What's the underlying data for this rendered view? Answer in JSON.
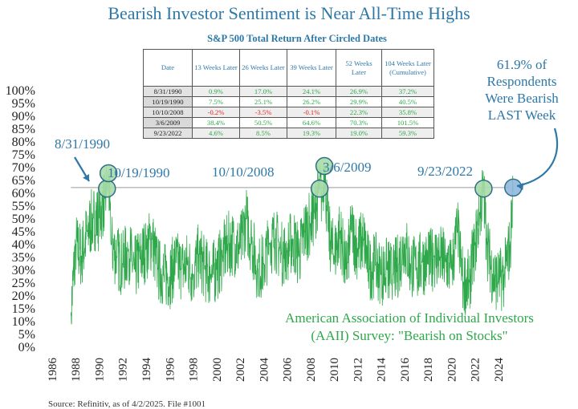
{
  "title": "Bearish Investor Sentiment is Near All-Time Highs",
  "table": {
    "title": "S&P 500 Total Return After Circled Dates",
    "headers": [
      "Date",
      "13 Weeks Later",
      "26 Weeks Later",
      "39 Weeks Later",
      "52 Weeks Later",
      "104 Weeks Later (Cumulative)"
    ],
    "rows": [
      [
        "8/31/1990",
        "0.9%",
        "17.0%",
        "24.1%",
        "26.9%",
        "37.2%"
      ],
      [
        "10/19/1990",
        "7.5%",
        "25.1%",
        "26.2%",
        "29.9%",
        "40.5%"
      ],
      [
        "10/10/2008",
        "-0.2%",
        "-3.5%",
        "-0.1%",
        "22.3%",
        "35.8%"
      ],
      [
        "3/6/2009",
        "38.4%",
        "50.5%",
        "64.6%",
        "70.3%",
        "101.5%"
      ],
      [
        "9/23/2022",
        "4.6%",
        "8.5%",
        "19.3%",
        "19.0%",
        "59.3%"
      ]
    ]
  },
  "annotations": {
    "d1990a": "8/31/1990",
    "d1990b": "10/19/1990",
    "d2008": "10/10/2008",
    "d2009": "3/6/2009",
    "d2022": "9/23/2022",
    "last_week": [
      "61.9% of",
      "Respondents",
      "Were Bearish",
      "LAST Week"
    ],
    "survey": [
      "American Association of Individual Investors",
      "(AAII) Survey: \"Bearish on Stocks\""
    ]
  },
  "source": "Source: Refinitiv, as of 4/2/2025. File #1001",
  "colors": {
    "title": "#2e78a8",
    "series": "#2ea84a",
    "circle_fill": "#a8dca8",
    "last_circle_fill": "#8fb8dd",
    "negative": "#e21f1f"
  },
  "chart_data": {
    "type": "line",
    "series_name": "AAII Survey Bearish on Stocks",
    "x_ticks": [
      "1986",
      "1988",
      "1990",
      "1992",
      "1994",
      "1996",
      "1998",
      "2000",
      "2002",
      "2004",
      "2006",
      "2008",
      "2010",
      "2012",
      "2014",
      "2016",
      "2018",
      "2020",
      "2022",
      "2024"
    ],
    "y_ticks": [
      "0%",
      "5%",
      "10%",
      "15%",
      "20%",
      "25%",
      "30%",
      "35%",
      "40%",
      "45%",
      "50%",
      "55%",
      "60%",
      "65%",
      "70%",
      "75%",
      "80%",
      "85%",
      "90%",
      "95%",
      "100%"
    ],
    "xlim": [
      1985.8,
      2025.3
    ],
    "ylim": [
      0,
      100
    ],
    "reference_line": 61.9,
    "points": [
      [
        1987.6,
        12
      ],
      [
        1988.0,
        40
      ],
      [
        1988.5,
        35
      ],
      [
        1989.0,
        45
      ],
      [
        1989.5,
        50
      ],
      [
        1990.0,
        50
      ],
      [
        1990.5,
        58
      ],
      [
        1990.67,
        61.5
      ],
      [
        1990.8,
        67.5
      ],
      [
        1991.0,
        40
      ],
      [
        1991.5,
        35
      ],
      [
        1992.0,
        32
      ],
      [
        1992.5,
        38
      ],
      [
        1993.0,
        30
      ],
      [
        1993.5,
        34
      ],
      [
        1994.0,
        38
      ],
      [
        1994.5,
        42
      ],
      [
        1995.0,
        30
      ],
      [
        1995.5,
        28
      ],
      [
        1996.0,
        27
      ],
      [
        1996.5,
        33
      ],
      [
        1997.0,
        30
      ],
      [
        1997.5,
        32
      ],
      [
        1998.0,
        28
      ],
      [
        1998.5,
        36
      ],
      [
        1999.0,
        30
      ],
      [
        1999.5,
        28
      ],
      [
        2000.0,
        30
      ],
      [
        2000.5,
        35
      ],
      [
        2001.0,
        40
      ],
      [
        2001.5,
        40
      ],
      [
        2002.0,
        38
      ],
      [
        2002.5,
        50
      ],
      [
        2003.0,
        40
      ],
      [
        2003.5,
        30
      ],
      [
        2004.0,
        32
      ],
      [
        2004.5,
        40
      ],
      [
        2005.0,
        42
      ],
      [
        2005.5,
        36
      ],
      [
        2006.0,
        37
      ],
      [
        2006.5,
        42
      ],
      [
        2007.0,
        35
      ],
      [
        2007.5,
        45
      ],
      [
        2008.0,
        48
      ],
      [
        2008.3,
        52
      ],
      [
        2008.77,
        61.5
      ],
      [
        2009.0,
        58
      ],
      [
        2009.18,
        70.3
      ],
      [
        2009.5,
        45
      ],
      [
        2010.0,
        35
      ],
      [
        2010.5,
        45
      ],
      [
        2011.0,
        30
      ],
      [
        2011.5,
        45
      ],
      [
        2012.0,
        38
      ],
      [
        2012.5,
        42
      ],
      [
        2013.0,
        30
      ],
      [
        2013.5,
        32
      ],
      [
        2014.0,
        28
      ],
      [
        2014.5,
        30
      ],
      [
        2015.0,
        28
      ],
      [
        2015.5,
        32
      ],
      [
        2016.0,
        40
      ],
      [
        2016.5,
        32
      ],
      [
        2017.0,
        30
      ],
      [
        2017.5,
        33
      ],
      [
        2018.0,
        32
      ],
      [
        2018.5,
        35
      ],
      [
        2019.0,
        35
      ],
      [
        2019.5,
        33
      ],
      [
        2020.0,
        30
      ],
      [
        2020.5,
        45
      ],
      [
        2021.0,
        25
      ],
      [
        2021.5,
        25
      ],
      [
        2022.0,
        40
      ],
      [
        2022.4,
        52
      ],
      [
        2022.73,
        61.5
      ],
      [
        2023.0,
        40
      ],
      [
        2023.5,
        28
      ],
      [
        2024.0,
        25
      ],
      [
        2024.5,
        28
      ],
      [
        2025.0,
        40
      ],
      [
        2025.25,
        61.9
      ]
    ],
    "highlights": [
      {
        "date": "8/31/1990",
        "x": 1990.67,
        "y": 61.5,
        "type": "circled"
      },
      {
        "date": "10/19/1990",
        "x": 1990.8,
        "y": 67.5,
        "type": "circled"
      },
      {
        "date": "10/10/2008",
        "x": 2008.77,
        "y": 61.5,
        "type": "circled"
      },
      {
        "date": "3/6/2009",
        "x": 2009.18,
        "y": 70.3,
        "type": "circled"
      },
      {
        "date": "9/23/2022",
        "x": 2022.73,
        "y": 61.5,
        "type": "circled"
      },
      {
        "date": "last week",
        "x": 2025.25,
        "y": 61.9,
        "type": "latest"
      }
    ]
  }
}
